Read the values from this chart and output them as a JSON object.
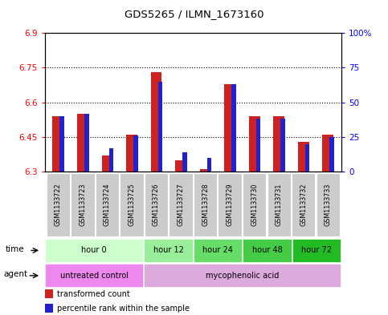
{
  "title": "GDS5265 / ILMN_1673160",
  "samples": [
    "GSM1133722",
    "GSM1133723",
    "GSM1133724",
    "GSM1133725",
    "GSM1133726",
    "GSM1133727",
    "GSM1133728",
    "GSM1133729",
    "GSM1133730",
    "GSM1133731",
    "GSM1133732",
    "GSM1133733"
  ],
  "transformed_count": [
    6.54,
    6.55,
    6.37,
    6.46,
    6.73,
    6.35,
    6.31,
    6.68,
    6.54,
    6.54,
    6.43,
    6.46
  ],
  "percentile_rank": [
    40,
    42,
    17,
    26,
    65,
    14,
    10,
    63,
    38,
    38,
    20,
    25
  ],
  "ylim_left": [
    6.3,
    6.9
  ],
  "ylim_right": [
    0,
    100
  ],
  "yticks_left": [
    6.3,
    6.45,
    6.6,
    6.75,
    6.9
  ],
  "yticks_left_labels": [
    "6.3",
    "6.45",
    "6.6",
    "6.75",
    "6.9"
  ],
  "yticks_right": [
    0,
    25,
    50,
    75,
    100
  ],
  "yticks_right_labels": [
    "0",
    "25",
    "50",
    "75",
    "100%"
  ],
  "bar_bottom": 6.3,
  "red_color": "#cc2222",
  "blue_color": "#2222cc",
  "time_groups": [
    {
      "label": "hour 0",
      "span": [
        0,
        4
      ],
      "color": "#ccffcc"
    },
    {
      "label": "hour 12",
      "span": [
        4,
        6
      ],
      "color": "#99ee99"
    },
    {
      "label": "hour 24",
      "span": [
        6,
        8
      ],
      "color": "#66dd66"
    },
    {
      "label": "hour 48",
      "span": [
        8,
        10
      ],
      "color": "#44cc44"
    },
    {
      "label": "hour 72",
      "span": [
        10,
        12
      ],
      "color": "#22bb22"
    }
  ],
  "agent_groups": [
    {
      "label": "untreated control",
      "span": [
        0,
        4
      ],
      "color": "#ee88ee"
    },
    {
      "label": "mycophenolic acid",
      "span": [
        4,
        12
      ],
      "color": "#ddaadd"
    }
  ],
  "figsize": [
    4.83,
    3.93
  ],
  "dpi": 100
}
